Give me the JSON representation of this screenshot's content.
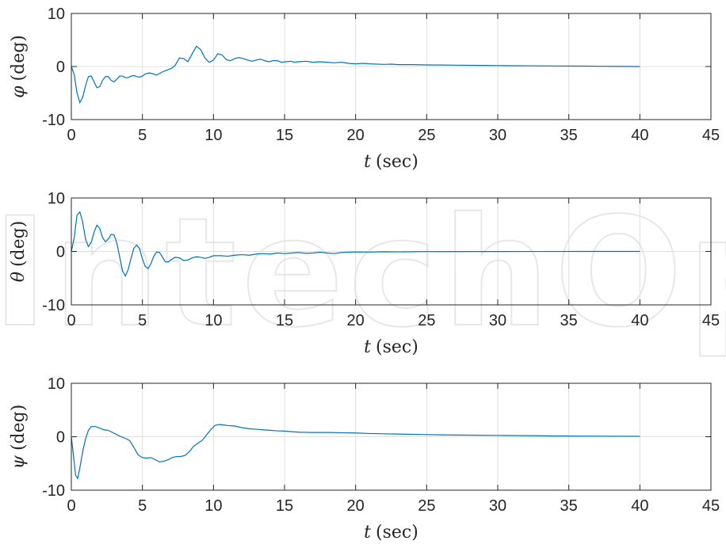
{
  "figure": {
    "watermark_text": "IntechOpen",
    "colors": {
      "line": "#0072BD",
      "axes": "#262626",
      "grid": "#DFDFDF",
      "background": "#FFFFFF"
    }
  },
  "chart_data": [
    {
      "type": "line",
      "ylabel_symbol": "φ",
      "ylabel_unit": "(deg)",
      "xlabel_symbol": "t",
      "xlabel_unit": "(sec)",
      "xlim": [
        0,
        45
      ],
      "ylim": [
        -10,
        10
      ],
      "xticks": [
        0,
        5,
        10,
        15,
        20,
        25,
        30,
        35,
        40,
        45
      ],
      "yticks": [
        -10,
        0,
        10
      ],
      "grid": true,
      "series": [
        {
          "x": [
            0,
            0.2,
            0.4,
            0.6,
            0.8,
            1.0,
            1.2,
            1.4,
            1.6,
            1.8,
            2.0,
            2.2,
            2.4,
            2.6,
            2.8,
            3.0,
            3.2,
            3.4,
            3.6,
            3.8,
            4.0,
            4.2,
            4.4,
            4.6,
            4.8,
            5.0,
            5.2,
            5.5,
            6.0,
            6.5,
            7.0,
            7.3,
            7.6,
            7.9,
            8.2,
            8.5,
            8.8,
            9.1,
            9.4,
            9.7,
            10.0,
            10.3,
            10.6,
            10.9,
            11.2,
            11.5,
            11.8,
            12.1,
            12.4,
            12.7,
            13.0,
            13.3,
            13.6,
            13.9,
            14.2,
            14.5,
            14.8,
            15.1,
            15.4,
            15.7,
            16.0,
            16.5,
            17.0,
            17.5,
            18.0,
            18.5,
            19.0,
            19.5,
            20.0,
            20.5,
            21.0,
            21.5,
            22.0,
            22.5,
            23.0,
            24,
            25,
            26,
            27,
            28,
            29,
            30,
            32,
            34,
            36,
            38,
            40
          ],
          "y": [
            0,
            -1.5,
            -5.0,
            -6.8,
            -5.8,
            -3.6,
            -1.9,
            -1.8,
            -2.9,
            -4.0,
            -3.8,
            -2.6,
            -1.9,
            -1.9,
            -2.6,
            -2.9,
            -2.4,
            -1.8,
            -1.8,
            -2.1,
            -2.1,
            -1.8,
            -1.7,
            -1.9,
            -2.0,
            -1.8,
            -1.4,
            -1.2,
            -1.6,
            -0.9,
            -0.4,
            0.2,
            1.6,
            1.5,
            0.9,
            2.4,
            3.8,
            3.2,
            1.6,
            0.8,
            1.2,
            2.4,
            2.2,
            1.3,
            1.1,
            1.5,
            1.7,
            1.5,
            1.2,
            1.0,
            1.2,
            1.4,
            1.1,
            0.9,
            1.1,
            1.1,
            0.8,
            0.9,
            1.0,
            0.8,
            0.9,
            1.0,
            0.8,
            0.9,
            0.8,
            0.7,
            0.8,
            0.6,
            0.5,
            0.6,
            0.5,
            0.45,
            0.4,
            0.45,
            0.35,
            0.35,
            0.3,
            0.28,
            0.25,
            0.22,
            0.2,
            0.18,
            0.14,
            0.1,
            0.07,
            0.04,
            0.0
          ]
        }
      ]
    },
    {
      "type": "line",
      "ylabel_symbol": "θ",
      "ylabel_unit": "(deg)",
      "xlabel_symbol": "t",
      "xlabel_unit": "(sec)",
      "xlim": [
        0,
        45
      ],
      "ylim": [
        -10,
        10
      ],
      "xticks": [
        0,
        5,
        10,
        15,
        20,
        25,
        30,
        35,
        40,
        45
      ],
      "yticks": [
        -10,
        0,
        10
      ],
      "grid": true,
      "series": [
        {
          "x": [
            0,
            0.2,
            0.4,
            0.6,
            0.8,
            1.0,
            1.2,
            1.4,
            1.6,
            1.8,
            2.0,
            2.2,
            2.4,
            2.6,
            2.8,
            3.0,
            3.2,
            3.4,
            3.6,
            3.8,
            4.0,
            4.2,
            4.4,
            4.6,
            4.8,
            5.0,
            5.2,
            5.4,
            5.6,
            5.8,
            6.0,
            6.2,
            6.4,
            6.6,
            6.8,
            7.0,
            7.3,
            7.6,
            7.9,
            8.2,
            8.5,
            8.8,
            9.1,
            9.4,
            9.7,
            10.0,
            10.5,
            11.0,
            11.5,
            12.0,
            12.5,
            13.0,
            13.5,
            14.0,
            14.5,
            15.0,
            15.5,
            16.0,
            16.5,
            17.0,
            17.5,
            18.0,
            18.5,
            19.0,
            19.5,
            20.0,
            21,
            22,
            23,
            24,
            25,
            26,
            28,
            30,
            32,
            34,
            36,
            38,
            40
          ],
          "y": [
            0,
            2.5,
            6.8,
            7.4,
            5.5,
            2.3,
            0.9,
            1.7,
            3.6,
            4.9,
            4.3,
            2.6,
            1.8,
            2.3,
            3.2,
            3.1,
            1.6,
            -1.0,
            -3.6,
            -4.6,
            -3.4,
            -1.3,
            0.6,
            1.2,
            0.5,
            -1.4,
            -2.8,
            -3.2,
            -2.3,
            -0.9,
            -0.1,
            -0.2,
            -1.0,
            -1.9,
            -2.0,
            -1.6,
            -1.1,
            -1.2,
            -1.7,
            -1.6,
            -1.2,
            -1.0,
            -1.1,
            -1.3,
            -1.1,
            -0.8,
            -0.8,
            -0.9,
            -0.7,
            -0.6,
            -0.7,
            -0.5,
            -0.4,
            -0.5,
            -0.3,
            -0.4,
            -0.3,
            -0.2,
            -0.35,
            -0.3,
            -0.15,
            -0.3,
            -0.4,
            -0.2,
            -0.15,
            -0.1,
            -0.12,
            -0.05,
            -0.08,
            -0.05,
            -0.03,
            -0.04,
            -0.02,
            -0.02,
            -0.01,
            -0.01,
            0.0,
            0.0,
            0.0
          ]
        }
      ]
    },
    {
      "type": "line",
      "ylabel_symbol": "ψ",
      "ylabel_unit": "(deg)",
      "xlabel_symbol": "t",
      "xlabel_unit": "(sec)",
      "xlim": [
        0,
        45
      ],
      "ylim": [
        -10,
        10
      ],
      "xticks": [
        0,
        5,
        10,
        15,
        20,
        25,
        30,
        35,
        40,
        45
      ],
      "yticks": [
        -10,
        0,
        10
      ],
      "grid": true,
      "series": [
        {
          "x": [
            0,
            0.15,
            0.3,
            0.45,
            0.6,
            0.8,
            1.0,
            1.2,
            1.4,
            1.7,
            2.0,
            2.3,
            2.6,
            2.9,
            3.2,
            3.5,
            3.8,
            4.1,
            4.4,
            4.7,
            5.0,
            5.3,
            5.6,
            5.9,
            6.2,
            6.5,
            6.8,
            7.1,
            7.4,
            7.7,
            8.0,
            8.3,
            8.6,
            8.9,
            9.2,
            9.5,
            9.8,
            10.1,
            10.4,
            10.7,
            11.0,
            11.5,
            12.0,
            12.5,
            13.0,
            13.5,
            14.0,
            14.5,
            15.0,
            15.5,
            16.0,
            17,
            18,
            19,
            20,
            21,
            22,
            23,
            24,
            25,
            26,
            27,
            28,
            30,
            32,
            34,
            36,
            38,
            40
          ],
          "y": [
            0,
            -3.5,
            -7.2,
            -7.8,
            -5.8,
            -2.8,
            -0.4,
            1.2,
            1.9,
            1.9,
            1.6,
            1.3,
            1.2,
            0.8,
            0.4,
            0.0,
            -0.3,
            -0.7,
            -2.0,
            -3.4,
            -3.9,
            -4.0,
            -3.9,
            -4.3,
            -4.7,
            -4.6,
            -4.3,
            -3.9,
            -3.7,
            -3.7,
            -3.5,
            -2.8,
            -1.8,
            -1.2,
            -0.7,
            0.3,
            1.3,
            2.1,
            2.3,
            2.2,
            2.1,
            2.0,
            1.7,
            1.5,
            1.4,
            1.3,
            1.2,
            1.1,
            1.05,
            0.95,
            0.85,
            0.8,
            0.8,
            0.75,
            0.7,
            0.6,
            0.55,
            0.5,
            0.45,
            0.4,
            0.35,
            0.32,
            0.3,
            0.25,
            0.2,
            0.15,
            0.12,
            0.1,
            0.08
          ]
        }
      ]
    }
  ]
}
